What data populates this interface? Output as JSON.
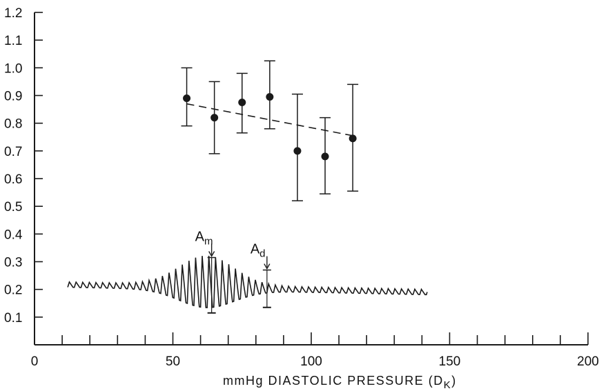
{
  "chart_data": {
    "type": "scatter",
    "title": "",
    "xlabel": "mmHg  DIASTOLIC  PRESSURE  (D",
    "xlabel_subscript": "K",
    "xlabel_close": ")",
    "ylabel": "",
    "xlim": [
      0,
      200
    ],
    "ylim": [
      0,
      1.2
    ],
    "x_ticks": [
      0,
      50,
      100,
      150,
      200
    ],
    "x_tick_labels": [
      "0",
      "50",
      "100",
      "150",
      "200"
    ],
    "x_minor_tick_step": 10,
    "y_ticks": [
      0.1,
      0.2,
      0.3,
      0.4,
      0.5,
      0.6,
      0.7,
      0.8,
      0.9,
      1.0,
      1.1,
      1.2
    ],
    "y_tick_labels": [
      "0.1",
      "0.2",
      "0.3",
      "0.4",
      "0.5",
      "0.6",
      "0.7",
      "0.8",
      "0.9",
      "1.0",
      "1.1",
      "1.2"
    ],
    "grid": false,
    "points": [
      {
        "x": 55,
        "y": 0.89,
        "err_low": 0.79,
        "err_high": 1.0
      },
      {
        "x": 65,
        "y": 0.82,
        "err_low": 0.69,
        "err_high": 0.95
      },
      {
        "x": 75,
        "y": 0.875,
        "err_low": 0.765,
        "err_high": 0.98
      },
      {
        "x": 85,
        "y": 0.895,
        "err_low": 0.78,
        "err_high": 1.025
      },
      {
        "x": 95,
        "y": 0.7,
        "err_low": 0.52,
        "err_high": 0.905
      },
      {
        "x": 105,
        "y": 0.68,
        "err_low": 0.545,
        "err_high": 0.82
      },
      {
        "x": 115,
        "y": 0.745,
        "err_low": 0.555,
        "err_high": 0.94
      }
    ],
    "trend_line": {
      "style": "dashed",
      "x": [
        55,
        115
      ],
      "y": [
        0.87,
        0.755
      ]
    },
    "waveform": {
      "description": "oscillometric pulse amplitude trace",
      "x_start": 12,
      "x_end": 142,
      "baseline_start": 0.215,
      "baseline_end": 0.188,
      "pulse_spacing": 2.4,
      "peak_x": 62,
      "peak_max": 0.31,
      "trough_min": 0.12
    },
    "annotations": [
      {
        "label": "A",
        "subscript": "m",
        "x": 64,
        "y_top": 0.315,
        "y_bottom": 0.115
      },
      {
        "label": "A",
        "subscript": "d",
        "x": 84,
        "y_top": 0.27,
        "y_bottom": 0.135
      }
    ]
  }
}
